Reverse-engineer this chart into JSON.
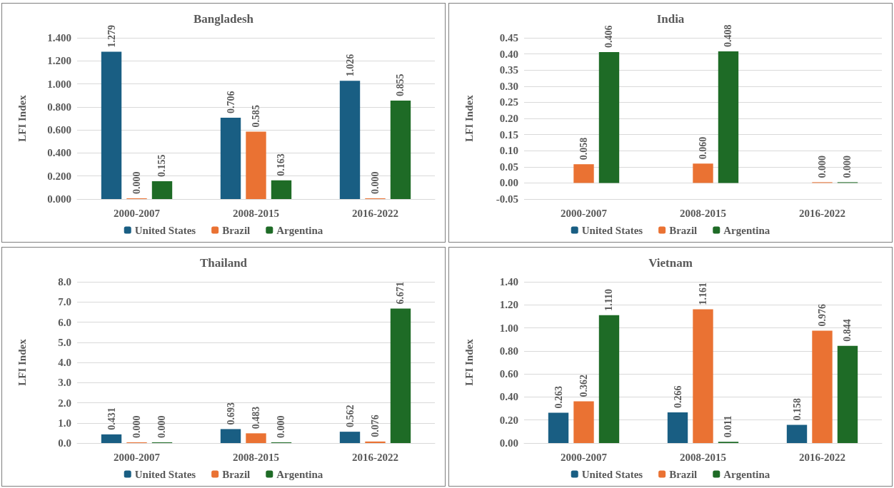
{
  "chart_data": [
    {
      "type": "bar",
      "title": "Bangladesh",
      "ylabel": "LFI Index",
      "categories": [
        "2000-2007",
        "2008-2015",
        "2016-2022"
      ],
      "ylim": [
        0,
        1.4
      ],
      "yticks": [
        {
          "value": 0,
          "label": "0.000"
        },
        {
          "value": 0.2,
          "label": "0.200"
        },
        {
          "value": 0.4,
          "label": "0.400"
        },
        {
          "value": 0.6,
          "label": "0.600"
        },
        {
          "value": 0.8,
          "label": "0.800"
        },
        {
          "value": 1,
          "label": "1.000"
        },
        {
          "value": 1.2,
          "label": "1.200"
        },
        {
          "value": 1.4,
          "label": "1.400"
        }
      ],
      "grid": "y",
      "legend": "bottom",
      "series": [
        {
          "name": "United States",
          "color": "#195e83",
          "values": [
            1.279,
            0.706,
            1.026
          ],
          "value_labels": [
            "1.279",
            "0.706",
            "1.026"
          ]
        },
        {
          "name": "Brazil",
          "color": "#ea7233",
          "values": [
            0,
            0.585,
            0
          ],
          "value_labels": [
            "0.000",
            "0.585",
            "0.000"
          ]
        },
        {
          "name": "Argentina",
          "color": "#1e6b26",
          "values": [
            0.155,
            0.163,
            0.855
          ],
          "value_labels": [
            "0.155",
            "0.163",
            "0.855"
          ]
        }
      ]
    },
    {
      "type": "bar",
      "title": "India",
      "ylabel": "LFI Index",
      "categories": [
        "2000-2007",
        "2008-2015",
        "2016-2022"
      ],
      "ylim": [
        -0.05,
        0.45
      ],
      "yticks": [
        {
          "value": -0.05,
          "label": "-0.05"
        },
        {
          "value": 0,
          "label": "0.00"
        },
        {
          "value": 0.05,
          "label": "0.05"
        },
        {
          "value": 0.1,
          "label": "0.10"
        },
        {
          "value": 0.15,
          "label": "0.15"
        },
        {
          "value": 0.2,
          "label": "0.20"
        },
        {
          "value": 0.25,
          "label": "0.25"
        },
        {
          "value": 0.3,
          "label": "0.30"
        },
        {
          "value": 0.35,
          "label": "0.35"
        },
        {
          "value": 0.4,
          "label": "0.40"
        },
        {
          "value": 0.45,
          "label": "0.45"
        }
      ],
      "grid": "y",
      "legend": "bottom",
      "series": [
        {
          "name": "United States",
          "color": "#195e83",
          "values": [
            null,
            null,
            null
          ],
          "value_labels": [
            null,
            null,
            null
          ]
        },
        {
          "name": "Brazil",
          "color": "#ea7233",
          "values": [
            0.058,
            0.06,
            0
          ],
          "value_labels": [
            "0.058",
            "0.060",
            "0.000"
          ]
        },
        {
          "name": "Argentina",
          "color": "#1e6b26",
          "values": [
            0.406,
            0.408,
            0
          ],
          "value_labels": [
            "0.406",
            "0.408",
            "0.000"
          ]
        }
      ]
    },
    {
      "type": "bar",
      "title": "Thailand",
      "ylabel": "LFI Index",
      "categories": [
        "2000-2007",
        "2008-2015",
        "2016-2022"
      ],
      "ylim": [
        0,
        8
      ],
      "yticks": [
        {
          "value": 0,
          "label": "0.0"
        },
        {
          "value": 1,
          "label": "1.0"
        },
        {
          "value": 2,
          "label": "2.0"
        },
        {
          "value": 3,
          "label": "3.0"
        },
        {
          "value": 4,
          "label": "4.0"
        },
        {
          "value": 5,
          "label": "5.0"
        },
        {
          "value": 6,
          "label": "6.0"
        },
        {
          "value": 7,
          "label": "7.0"
        },
        {
          "value": 8,
          "label": "8.0"
        }
      ],
      "grid": "y",
      "legend": "bottom",
      "series": [
        {
          "name": "United States",
          "color": "#195e83",
          "values": [
            0.431,
            0.693,
            0.562
          ],
          "value_labels": [
            "0.431",
            "0.693",
            "0.562"
          ]
        },
        {
          "name": "Brazil",
          "color": "#ea7233",
          "values": [
            0,
            0.483,
            0.076
          ],
          "value_labels": [
            "0.000",
            "0.483",
            "0.076"
          ]
        },
        {
          "name": "Argentina",
          "color": "#1e6b26",
          "values": [
            0,
            0,
            6.671
          ],
          "value_labels": [
            "0.000",
            "0.000",
            "6.671"
          ]
        }
      ]
    },
    {
      "type": "bar",
      "title": "Vietnam",
      "ylabel": "LFI Index",
      "categories": [
        "2000-2007",
        "2008-2015",
        "2016-2022"
      ],
      "ylim": [
        0,
        1.4
      ],
      "yticks": [
        {
          "value": 0,
          "label": "0.00"
        },
        {
          "value": 0.2,
          "label": "0.20"
        },
        {
          "value": 0.4,
          "label": "0.40"
        },
        {
          "value": 0.6,
          "label": "0.60"
        },
        {
          "value": 0.8,
          "label": "0.80"
        },
        {
          "value": 1,
          "label": "1.00"
        },
        {
          "value": 1.2,
          "label": "1.20"
        },
        {
          "value": 1.4,
          "label": "1.40"
        }
      ],
      "grid": "y",
      "legend": "bottom",
      "series": [
        {
          "name": "United States",
          "color": "#195e83",
          "values": [
            0.263,
            0.266,
            0.158
          ],
          "value_labels": [
            "0.263",
            "0.266",
            "0.158"
          ]
        },
        {
          "name": "Brazil",
          "color": "#ea7233",
          "values": [
            0.362,
            1.161,
            0.976
          ],
          "value_labels": [
            "0.362",
            "1.161",
            "0.976"
          ]
        },
        {
          "name": "Argentina",
          "color": "#1e6b26",
          "values": [
            1.11,
            0.011,
            0.844
          ],
          "value_labels": [
            "1.110",
            "0.011",
            "0.844"
          ]
        }
      ]
    }
  ]
}
